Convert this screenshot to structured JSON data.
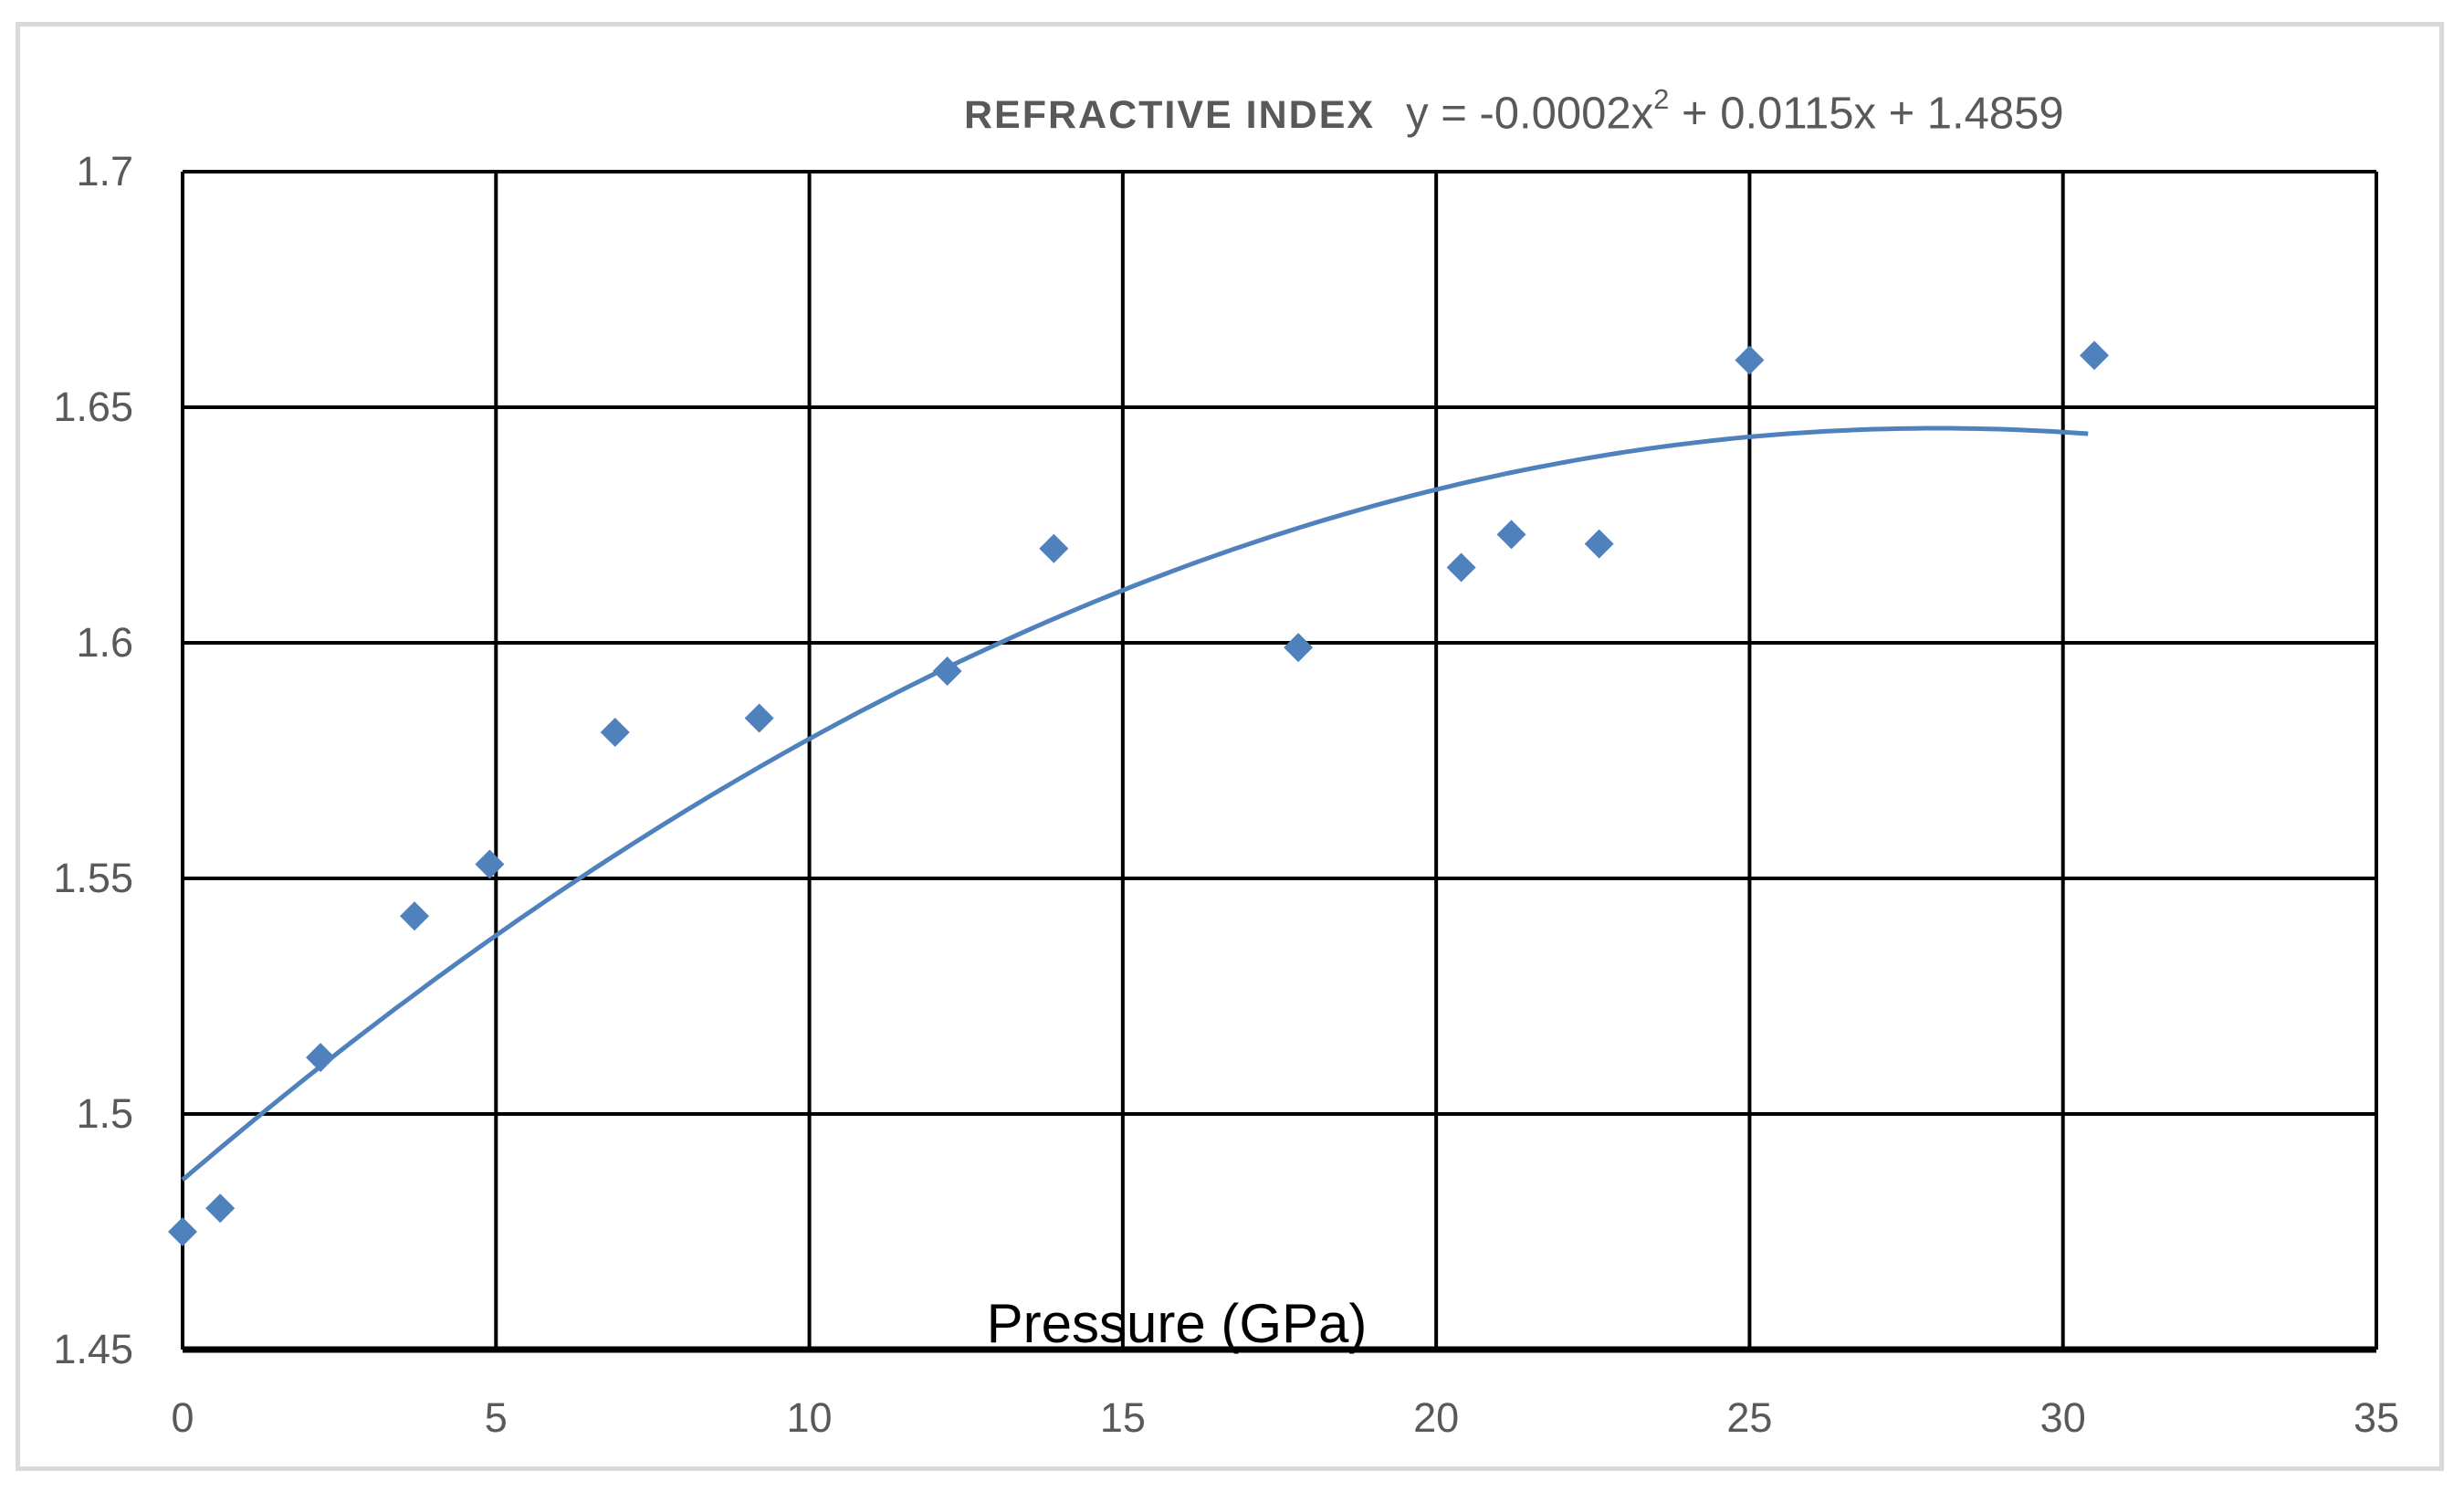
{
  "chart_data": {
    "type": "scatter",
    "title": "REFRACTIVE INDEX",
    "trendline_equation": {
      "prefix": "y = -0.0002x",
      "superscript": "2",
      "suffix": " + 0.0115x + 1.4859"
    },
    "xlabel": "Pressure (GPa)",
    "ylabel": "",
    "xlim": [
      0,
      35
    ],
    "ylim": [
      1.45,
      1.7
    ],
    "grid": true,
    "legend": "none",
    "x_ticks": [
      {
        "label": "0",
        "value": 0
      },
      {
        "label": "5",
        "value": 5
      },
      {
        "label": "10",
        "value": 10
      },
      {
        "label": "15",
        "value": 15
      },
      {
        "label": "20",
        "value": 20
      },
      {
        "label": "25",
        "value": 25
      },
      {
        "label": "30",
        "value": 30
      },
      {
        "label": "35",
        "value": 35
      }
    ],
    "y_ticks": [
      {
        "label": "1.45",
        "value": 1.45
      },
      {
        "label": "1.5",
        "value": 1.5
      },
      {
        "label": "1.55",
        "value": 1.55
      },
      {
        "label": "1.6",
        "value": 1.6
      },
      {
        "label": "1.65",
        "value": 1.65
      },
      {
        "label": "1.7",
        "value": 1.7
      }
    ],
    "series": [
      {
        "name": "refractive-index-vs-pressure",
        "marker": "diamond",
        "points": [
          [
            0,
            1.475
          ],
          [
            0.6,
            1.48
          ],
          [
            2.2,
            1.512
          ],
          [
            3.7,
            1.542
          ],
          [
            4.9,
            1.553
          ],
          [
            6.9,
            1.581
          ],
          [
            9.2,
            1.584
          ],
          [
            12.2,
            1.594
          ],
          [
            13.9,
            1.62
          ],
          [
            17.8,
            1.599
          ],
          [
            20.4,
            1.616
          ],
          [
            21.2,
            1.623
          ],
          [
            22.6,
            1.621
          ],
          [
            25.0,
            1.66
          ],
          [
            30.5,
            1.661
          ]
        ]
      }
    ],
    "trendline": {
      "kind": "quadratic",
      "a": -0.0002035,
      "b": 0.011396,
      "c": 1.486,
      "x_start": 0,
      "x_end": 30.4
    },
    "colors": {
      "marker": "#4F81BD",
      "trendline": "#4F81BD",
      "gridline": "#000000",
      "axis_line": "#000000",
      "tick_label": "#595959",
      "title_text": "#595959",
      "axis_title_text": "#000000",
      "frame": "#D9D9D9",
      "background": "#FFFFFF"
    }
  }
}
